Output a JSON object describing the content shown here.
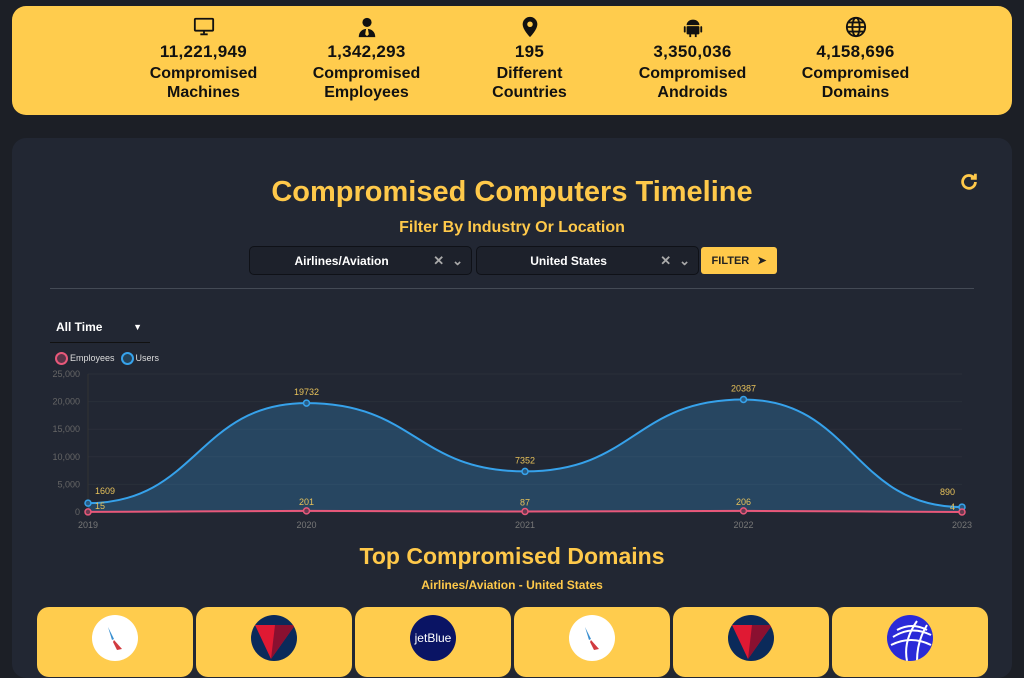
{
  "stats": [
    {
      "icon": "monitor-icon",
      "value": "11,221,949",
      "label1": "Compromised",
      "label2": "Machines"
    },
    {
      "icon": "user-tie-icon",
      "value": "1,342,293",
      "label1": "Compromised",
      "label2": "Employees"
    },
    {
      "icon": "map-pin-icon",
      "value": "195",
      "label1": "Different",
      "label2": "Countries"
    },
    {
      "icon": "android-icon",
      "value": "3,350,036",
      "label1": "Compromised",
      "label2": "Androids"
    },
    {
      "icon": "globe-icon",
      "value": "4,158,696",
      "label1": "Compromised",
      "label2": "Domains"
    }
  ],
  "timeline": {
    "title": "Compromised Computers Timeline",
    "subtitle": "Filter By Industry Or Location",
    "industry": "Airlines/Aviation",
    "location": "United States",
    "filter_label": "FILTER",
    "range": "All Time"
  },
  "chart_data": {
    "type": "area",
    "x": [
      "2019",
      "2020",
      "2021",
      "2022",
      "2023"
    ],
    "yticks": [
      "0",
      "5,000",
      "10,000",
      "15,000",
      "20,000",
      "25,000"
    ],
    "ylim": [
      0,
      25000
    ],
    "legend": "top-left",
    "series": [
      {
        "name": "Employees",
        "values": [
          15,
          201,
          87,
          206,
          4
        ],
        "color": "#e8587a"
      },
      {
        "name": "Users",
        "values": [
          1609,
          19732,
          7352,
          20387,
          890
        ],
        "color": "#36a2eb"
      }
    ]
  },
  "domains": {
    "title": "Top Compromised Domains",
    "subtitle": "Airlines/Aviation - United States",
    "cards": [
      {
        "logo": "american-airlines-logo"
      },
      {
        "logo": "delta-logo"
      },
      {
        "logo": "jetblue-logo",
        "text": "jetBlue"
      },
      {
        "logo": "american-airlines-logo"
      },
      {
        "logo": "delta-logo"
      },
      {
        "logo": "united-logo"
      }
    ]
  },
  "colors": {
    "accent": "#ffcc4d",
    "panel": "#222733"
  }
}
